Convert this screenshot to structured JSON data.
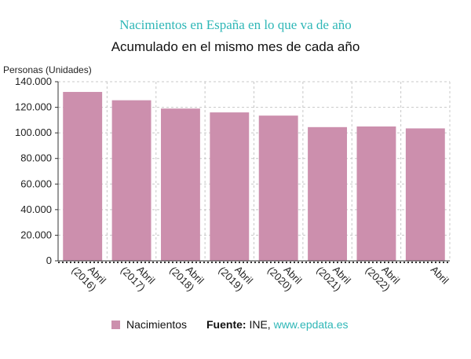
{
  "chart_data": {
    "type": "bar",
    "title": "Nacimientos en España en lo que va de año",
    "subtitle": "Acumulado en el mismo mes de cada año",
    "ylabel": "Personas (Unidades)",
    "ylim": [
      0,
      140000
    ],
    "ytick_labels": [
      "0",
      "20.000",
      "40.000",
      "60.000",
      "80.000",
      "100.000",
      "120.000",
      "140.000"
    ],
    "yticks": [
      0,
      20000,
      40000,
      60000,
      80000,
      100000,
      120000,
      140000
    ],
    "categories": [
      [
        "Abril",
        "(2016)"
      ],
      [
        "Abril",
        "(2017)"
      ],
      [
        "Abril",
        "(2018)"
      ],
      [
        "Abril",
        "(2019)"
      ],
      [
        "Abril",
        "(2020)"
      ],
      [
        "Abril",
        "(2021)"
      ],
      [
        "Abril",
        "(2022)"
      ],
      [
        "Abril"
      ]
    ],
    "series": [
      {
        "name": "Nacimientos",
        "values": [
          132000,
          125500,
          119000,
          116000,
          113500,
          104500,
          105000,
          103500
        ]
      }
    ],
    "grid": true,
    "legend_position": "bottom",
    "bar_color": "#cc8fad",
    "grid_color": "#c8c8c8"
  },
  "footer": {
    "legend_label": "Nacimientos",
    "source_label": "Fuente:",
    "source_name": "INE,",
    "source_link": "www.epdata.es"
  }
}
